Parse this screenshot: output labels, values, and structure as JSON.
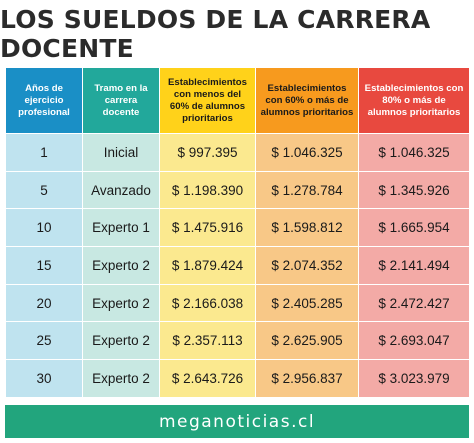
{
  "title": "LOS SUELDOS DE LA CARRERA DOCENTE",
  "headers": [
    "Años de ejercicio profesional",
    "Tramo en la carrera docente",
    "Establecimientos con menos del 60% de alumnos prioritarios",
    "Establecimientos con 60% o más de alumnos prioritarios",
    "Establecimientos con 80% o más de alumnos prioritarios"
  ],
  "rows": [
    [
      "1",
      "Inicial",
      "$ 997.395",
      "$ 1.046.325",
      "$ 1.046.325"
    ],
    [
      "5",
      "Avanzado",
      "$ 1.198.390",
      "$ 1.278.784",
      "$ 1.345.926"
    ],
    [
      "10",
      "Experto 1",
      "$ 1.475.916",
      "$ 1.598.812",
      "$ 1.665.954"
    ],
    [
      "15",
      "Experto 2",
      "$ 1.879.424",
      "$ 2.074.352",
      "$ 2.141.494"
    ],
    [
      "20",
      "Experto 2",
      "$ 2.166.038",
      "$ 2.405.285",
      "$ 2.472.427"
    ],
    [
      "25",
      "Experto 2",
      "$ 2.357.113",
      "$ 2.625.905",
      "$ 2.693.047"
    ],
    [
      "30",
      "Experto 2",
      "$ 2.643.726",
      "$ 2.956.837",
      "$ 3.023.979"
    ]
  ],
  "footer": "meganoticias.cl",
  "colors": {
    "col1_header": "#1a8fc6",
    "col2_header": "#22a89b",
    "col3_header": "#ffd21a",
    "col4_header": "#f79a1e",
    "col5_header": "#e8493f",
    "footer_bg": "#22a57d"
  }
}
